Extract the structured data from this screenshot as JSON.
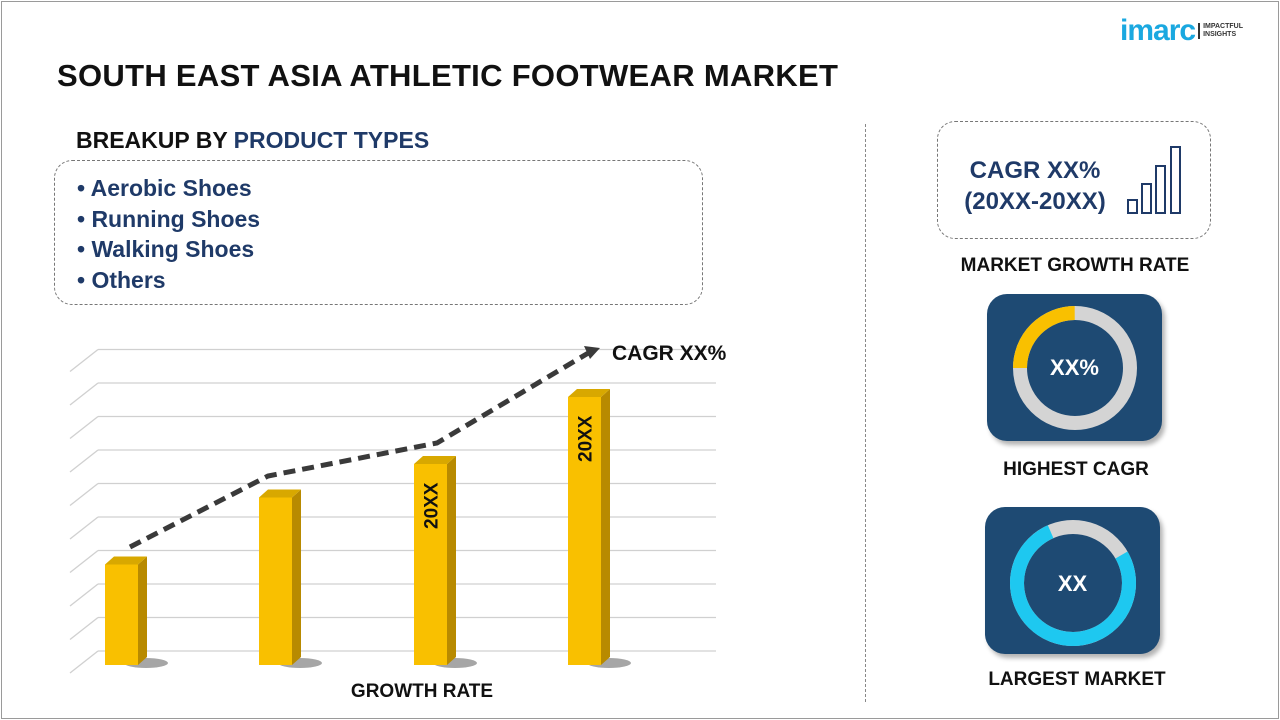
{
  "title": "SOUTH EAST ASIA ATHLETIC FOOTWEAR MARKET",
  "logo": {
    "word": "imarc",
    "tagline_1": "IMPACTFUL",
    "tagline_2": "INSIGHTS"
  },
  "breakup": {
    "prefix": "BREAKUP BY ",
    "highlight": "PRODUCT TYPES",
    "items": [
      "• Aerobic Shoes",
      "• Running Shoes",
      "• Walking Shoes",
      "• Others"
    ]
  },
  "right": {
    "cagr_line1": "CAGR XX%",
    "cagr_line2": "(20XX-20XX)",
    "market_growth_label": "MARKET GROWTH RATE",
    "highest_value": "XX%",
    "highest_label": "HIGHEST CAGR",
    "largest_value": "XX",
    "largest_label": "LARGEST MARKET"
  },
  "colors": {
    "bar": "#f9c000",
    "bar_side": "#b88a00",
    "navy": "#1f3a68",
    "tile": "#1e4a73",
    "gold": "#f9c000",
    "cyan": "#1ec8f0",
    "ring_gray": "#d4d4d4"
  },
  "chart_data": {
    "type": "bar",
    "categories": [
      "",
      "",
      "",
      ""
    ],
    "values": [
      3,
      5,
      6,
      8
    ],
    "bar_labels": [
      "",
      "",
      "20XX",
      "20XX"
    ],
    "trend_annotation": "CAGR XX%",
    "xlabel": "GROWTH RATE",
    "ylabel": "",
    "ylim": [
      0,
      9
    ],
    "grid": true,
    "style": "3d"
  }
}
